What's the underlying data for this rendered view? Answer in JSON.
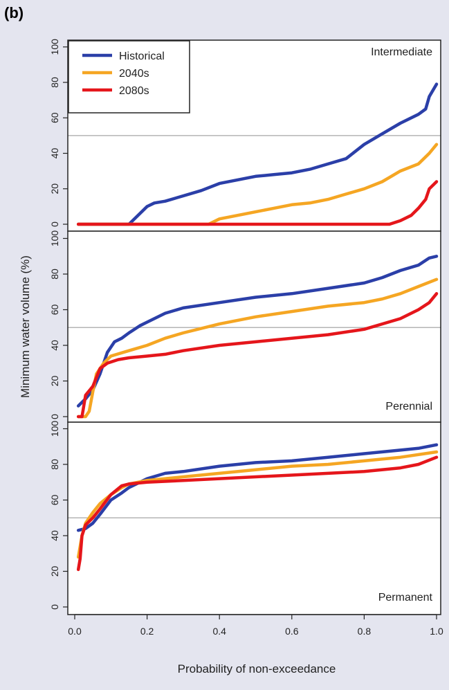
{
  "figure": {
    "panel_label": "(b)",
    "ylabel": "Minimum water volume (%)",
    "xlabel": "Probability of non-exceedance"
  },
  "colors": {
    "background": "#e4e5ef",
    "plot_bg": "#ffffff",
    "historical": "#2b3fa8",
    "s2040": "#f5a623",
    "s2080": "#e5161b",
    "reference_line": "#b4b4b4"
  },
  "chart_data": [
    {
      "type": "line",
      "title": "Intermediate",
      "xlabel": "Probability of non-exceedance",
      "ylabel": "Minimum water volume (%)",
      "xlim": [
        0,
        1
      ],
      "ylim": [
        0,
        100
      ],
      "x_ticks": [
        "0.0",
        "0.2",
        "0.4",
        "0.6",
        "0.8",
        "1.0"
      ],
      "y_ticks": [
        "0",
        "20",
        "40",
        "60",
        "80",
        "100"
      ],
      "reference_line": 50,
      "legend": {
        "position": "top-left",
        "entries": [
          "Historical",
          "2040s",
          "2080s"
        ]
      },
      "series": [
        {
          "name": "Historical",
          "x": [
            0.01,
            0.15,
            0.17,
            0.2,
            0.22,
            0.25,
            0.3,
            0.35,
            0.4,
            0.45,
            0.5,
            0.55,
            0.6,
            0.65,
            0.7,
            0.75,
            0.8,
            0.85,
            0.9,
            0.95,
            0.97,
            0.98,
            1.0
          ],
          "y": [
            0,
            0,
            4,
            10,
            12,
            13,
            16,
            19,
            23,
            25,
            27,
            28,
            29,
            31,
            34,
            37,
            45,
            51,
            57,
            62,
            65,
            72,
            79
          ]
        },
        {
          "name": "2040s",
          "x": [
            0.01,
            0.37,
            0.4,
            0.45,
            0.5,
            0.55,
            0.6,
            0.65,
            0.7,
            0.75,
            0.8,
            0.85,
            0.9,
            0.95,
            0.98,
            1.0
          ],
          "y": [
            0,
            0,
            3,
            5,
            7,
            9,
            11,
            12,
            14,
            17,
            20,
            24,
            30,
            34,
            40,
            45
          ]
        },
        {
          "name": "2080s",
          "x": [
            0.01,
            0.87,
            0.9,
            0.93,
            0.95,
            0.97,
            0.98,
            1.0
          ],
          "y": [
            0,
            0,
            2,
            5,
            9,
            14,
            20,
            24
          ]
        }
      ]
    },
    {
      "type": "line",
      "title": "Perennial",
      "xlabel": "Probability of non-exceedance",
      "ylabel": "Minimum water volume (%)",
      "xlim": [
        0,
        1
      ],
      "ylim": [
        0,
        100
      ],
      "x_ticks": [
        "0.0",
        "0.2",
        "0.4",
        "0.6",
        "0.8",
        "1.0"
      ],
      "y_ticks": [
        "0",
        "20",
        "40",
        "60",
        "80",
        "100"
      ],
      "reference_line": 50,
      "series": [
        {
          "name": "Historical",
          "x": [
            0.01,
            0.03,
            0.05,
            0.07,
            0.09,
            0.11,
            0.13,
            0.15,
            0.18,
            0.2,
            0.25,
            0.3,
            0.4,
            0.5,
            0.6,
            0.7,
            0.8,
            0.85,
            0.9,
            0.95,
            0.98,
            1.0
          ],
          "y": [
            6,
            10,
            15,
            24,
            36,
            42,
            44,
            47,
            51,
            53,
            58,
            61,
            64,
            67,
            69,
            72,
            75,
            78,
            82,
            85,
            89,
            90
          ]
        },
        {
          "name": "2040s",
          "x": [
            0.01,
            0.03,
            0.04,
            0.05,
            0.06,
            0.08,
            0.1,
            0.15,
            0.2,
            0.25,
            0.3,
            0.4,
            0.5,
            0.6,
            0.7,
            0.8,
            0.85,
            0.9,
            0.95,
            1.0
          ],
          "y": [
            0,
            0,
            3,
            14,
            24,
            30,
            34,
            37,
            40,
            44,
            47,
            52,
            56,
            59,
            62,
            64,
            66,
            69,
            73,
            77
          ]
        },
        {
          "name": "2080s",
          "x": [
            0.01,
            0.02,
            0.03,
            0.05,
            0.07,
            0.09,
            0.12,
            0.15,
            0.2,
            0.25,
            0.3,
            0.4,
            0.5,
            0.6,
            0.7,
            0.8,
            0.85,
            0.9,
            0.95,
            0.98,
            1.0
          ],
          "y": [
            0,
            0,
            12,
            17,
            27,
            30,
            32,
            33,
            34,
            35,
            37,
            40,
            42,
            44,
            46,
            49,
            52,
            55,
            60,
            64,
            69
          ]
        }
      ]
    },
    {
      "type": "line",
      "title": "Permanent",
      "xlabel": "Probability of non-exceedance",
      "ylabel": "Minimum water volume (%)",
      "xlim": [
        0,
        1
      ],
      "ylim": [
        0,
        100
      ],
      "x_ticks": [
        "0.0",
        "0.2",
        "0.4",
        "0.6",
        "0.8",
        "1.0"
      ],
      "y_ticks": [
        "0",
        "20",
        "40",
        "60",
        "80",
        "100"
      ],
      "reference_line": 50,
      "series": [
        {
          "name": "Historical",
          "x": [
            0.01,
            0.03,
            0.05,
            0.07,
            0.1,
            0.13,
            0.15,
            0.18,
            0.2,
            0.25,
            0.3,
            0.4,
            0.5,
            0.6,
            0.7,
            0.8,
            0.9,
            0.95,
            1.0
          ],
          "y": [
            43,
            44,
            47,
            52,
            60,
            64,
            67,
            70,
            72,
            75,
            76,
            79,
            81,
            82,
            84,
            86,
            88,
            89,
            91
          ]
        },
        {
          "name": "2040s",
          "x": [
            0.01,
            0.02,
            0.03,
            0.05,
            0.07,
            0.1,
            0.13,
            0.15,
            0.2,
            0.25,
            0.3,
            0.4,
            0.5,
            0.6,
            0.7,
            0.8,
            0.9,
            1.0
          ],
          "y": [
            28,
            40,
            47,
            53,
            58,
            63,
            67,
            69,
            71,
            72,
            73,
            75,
            77,
            79,
            80,
            82,
            84,
            87
          ]
        },
        {
          "name": "2080s",
          "x": [
            0.01,
            0.015,
            0.02,
            0.03,
            0.05,
            0.07,
            0.1,
            0.13,
            0.15,
            0.2,
            0.3,
            0.4,
            0.5,
            0.6,
            0.7,
            0.8,
            0.9,
            0.95,
            1.0
          ],
          "y": [
            21,
            27,
            40,
            46,
            50,
            55,
            63,
            68,
            69,
            70,
            71,
            72,
            73,
            74,
            75,
            76,
            78,
            80,
            84
          ]
        }
      ]
    }
  ]
}
